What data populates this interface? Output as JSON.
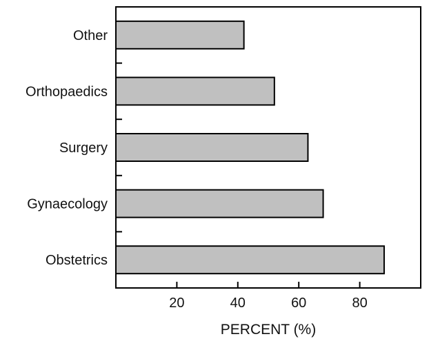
{
  "chart_data": {
    "type": "bar",
    "orientation": "horizontal",
    "categories": [
      "Other",
      "Orthopaedics",
      "Surgery",
      "Gynaecology",
      "Obstetrics"
    ],
    "values": [
      42,
      52,
      63,
      68,
      88
    ],
    "title": "",
    "xlabel": "PERCENT (%)",
    "ylabel": "",
    "xlim": [
      0,
      100
    ],
    "xticks": [
      20,
      40,
      60,
      80
    ],
    "grid": false,
    "legend": "none",
    "bar_color": "#c0c0c0",
    "bar_edge_color": "#000000"
  }
}
